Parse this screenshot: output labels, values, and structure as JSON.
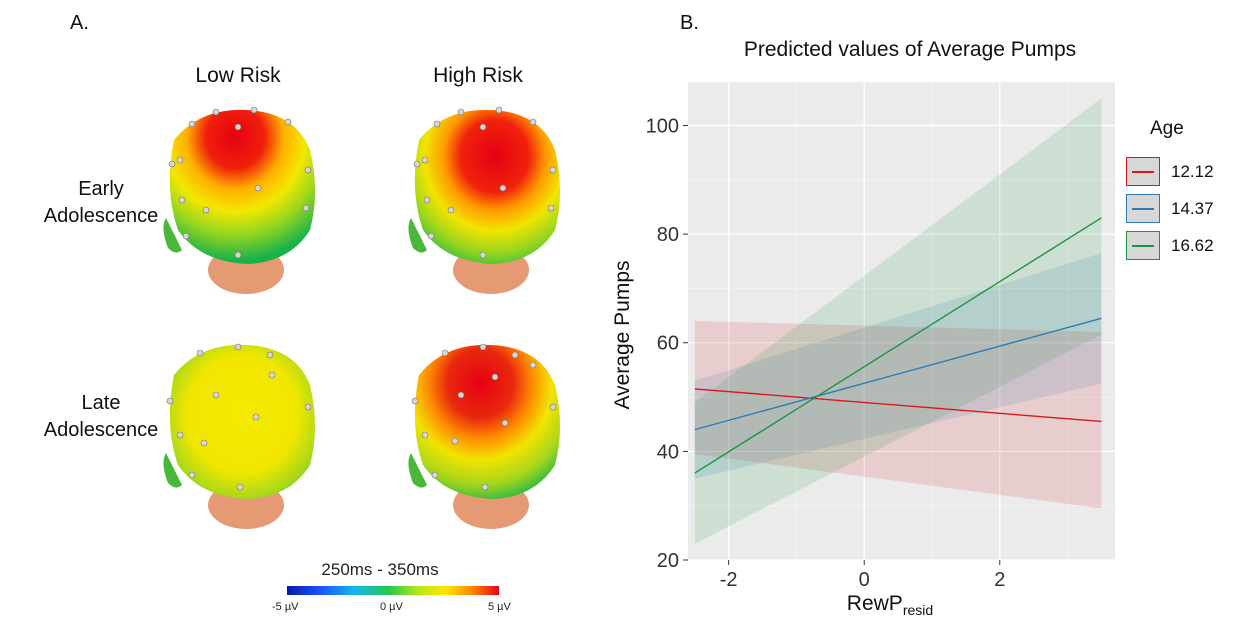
{
  "panel_a": {
    "label": "A.",
    "columns": [
      "Low Risk",
      "High Risk"
    ],
    "rows": [
      {
        "line1": "Early",
        "line2": "Adolescence"
      },
      {
        "line1": "Late",
        "line2": "Adolescence"
      }
    ],
    "colorbar": {
      "title": "250ms - 350ms",
      "min": "-5 µV",
      "mid": "0 µV",
      "max": "5 µV"
    }
  },
  "panel_b": {
    "label": "B."
  },
  "chart_data": {
    "type": "line",
    "title": "Predicted values of Average Pumps",
    "xlabel_main": "RewP",
    "xlabel_sub": "resid",
    "ylabel": "Average Pumps",
    "xlim": [
      -2.6,
      3.7
    ],
    "ylim": [
      20,
      108
    ],
    "x_ticks": [
      -2,
      0,
      2
    ],
    "y_ticks": [
      20,
      40,
      60,
      80,
      100
    ],
    "legend_title": "Age",
    "legend_position": "right",
    "grid": true,
    "series": [
      {
        "name": "12.12",
        "color": "#d7191c",
        "x": [
          -2.5,
          3.5
        ],
        "y": [
          51.5,
          45.5
        ],
        "ci_lower": [
          39.5,
          29.5
        ],
        "ci_upper": [
          64,
          62
        ]
      },
      {
        "name": "14.37",
        "color": "#2c7bb6",
        "x": [
          -2.5,
          3.5
        ],
        "y": [
          44,
          64.5
        ],
        "ci_lower": [
          35,
          52.5
        ],
        "ci_upper": [
          53,
          76.5
        ]
      },
      {
        "name": "16.62",
        "color": "#1a9641",
        "x": [
          -2.5,
          3.5
        ],
        "y": [
          36,
          83
        ],
        "ci_lower": [
          23,
          61.5
        ],
        "ci_upper": [
          49,
          105
        ]
      }
    ]
  }
}
